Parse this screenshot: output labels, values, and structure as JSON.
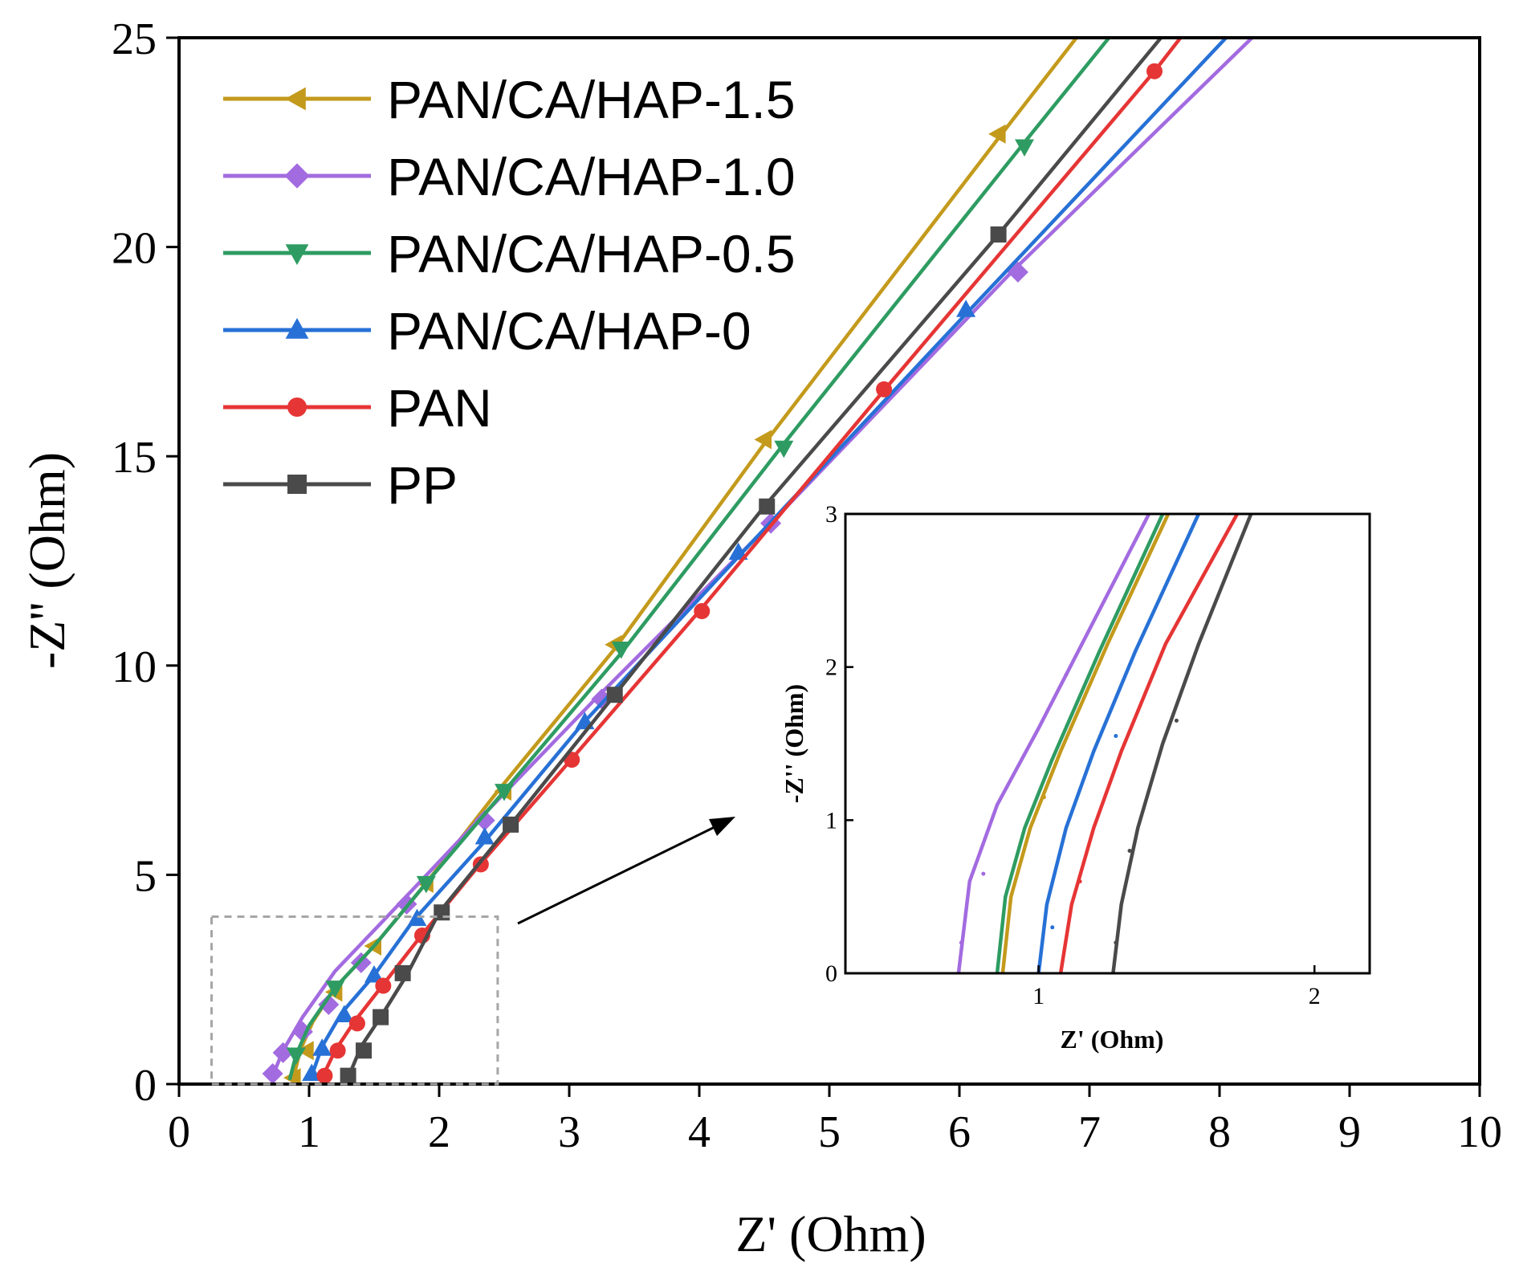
{
  "chart_data": {
    "type": "line",
    "title": "",
    "xlabel": "Z' (Ohm)",
    "ylabel": "-Z'' (Ohm)",
    "xlim": [
      0,
      10
    ],
    "ylim": [
      0,
      25
    ],
    "xticks": [
      "0",
      "1",
      "2",
      "3",
      "4",
      "5",
      "6",
      "7",
      "8",
      "9",
      "10"
    ],
    "yticks": [
      "0",
      "5",
      "10",
      "15",
      "20",
      "25"
    ],
    "legend_position": "top-left",
    "series": [
      {
        "name": "PAN/CA/HAP-1.5",
        "color": "#c49a1c",
        "marker": "triangle-left",
        "points": [
          [
            0.88,
            0.15
          ],
          [
            0.93,
            0.8
          ],
          [
            1.03,
            1.5
          ],
          [
            1.2,
            2.3
          ],
          [
            1.5,
            3.3
          ],
          [
            1.9,
            4.8
          ],
          [
            2.45,
            7.0
          ],
          [
            3.35,
            10.4
          ],
          [
            4.5,
            15.3
          ],
          [
            6.3,
            22.6
          ],
          [
            6.9,
            25.0
          ]
        ],
        "markers": [
          [
            0.88,
            0.15
          ],
          [
            0.98,
            0.8
          ],
          [
            1.2,
            2.2
          ],
          [
            1.5,
            3.3
          ],
          [
            1.9,
            4.8
          ],
          [
            2.5,
            7.0
          ],
          [
            3.35,
            10.5
          ],
          [
            4.5,
            15.4
          ],
          [
            6.3,
            22.7
          ]
        ]
      },
      {
        "name": "PAN/CA/HAP-1.0",
        "color": "#a36be0",
        "marker": "diamond",
        "points": [
          [
            0.72,
            0.2
          ],
          [
            0.8,
            0.8
          ],
          [
            0.95,
            1.6
          ],
          [
            1.2,
            2.7
          ],
          [
            1.6,
            4.0
          ],
          [
            2.3,
            6.3
          ],
          [
            3.2,
            9.2
          ],
          [
            4.55,
            13.4
          ],
          [
            6.4,
            19.4
          ],
          [
            8.25,
            25.0
          ]
        ],
        "markers": [
          [
            0.72,
            0.25
          ],
          [
            0.8,
            0.75
          ],
          [
            0.95,
            1.25
          ],
          [
            1.15,
            1.9
          ],
          [
            1.4,
            2.9
          ],
          [
            1.75,
            4.3
          ],
          [
            2.35,
            6.3
          ],
          [
            3.25,
            9.2
          ],
          [
            4.55,
            13.4
          ],
          [
            6.45,
            19.4
          ]
        ]
      },
      {
        "name": "PAN/CA/HAP-0.5",
        "color": "#2e9c62",
        "marker": "triangle-down",
        "points": [
          [
            0.85,
            0.1
          ],
          [
            0.9,
            0.7
          ],
          [
            1.0,
            1.4
          ],
          [
            1.2,
            2.3
          ],
          [
            1.5,
            3.3
          ],
          [
            1.9,
            4.8
          ],
          [
            2.5,
            7.0
          ],
          [
            3.4,
            10.3
          ],
          [
            4.65,
            15.3
          ],
          [
            6.5,
            22.5
          ],
          [
            7.15,
            25.0
          ]
        ],
        "markers": [
          [
            0.9,
            0.7
          ],
          [
            1.2,
            2.3
          ],
          [
            1.9,
            4.8
          ],
          [
            2.5,
            7.0
          ],
          [
            3.4,
            10.4
          ],
          [
            4.65,
            15.2
          ],
          [
            6.5,
            22.4
          ]
        ]
      },
      {
        "name": "PAN/CA/HAP-0",
        "color": "#2771d6",
        "marker": "triangle-up",
        "points": [
          [
            1.02,
            0.2
          ],
          [
            1.1,
            0.9
          ],
          [
            1.25,
            1.7
          ],
          [
            1.5,
            2.6
          ],
          [
            1.8,
            3.9
          ],
          [
            2.35,
            5.8
          ],
          [
            3.1,
            8.6
          ],
          [
            4.3,
            12.6
          ],
          [
            6.05,
            18.4
          ],
          [
            8.05,
            25.0
          ]
        ],
        "markers": [
          [
            1.02,
            0.25
          ],
          [
            1.1,
            0.85
          ],
          [
            1.27,
            1.65
          ],
          [
            1.5,
            2.6
          ],
          [
            1.83,
            3.95
          ],
          [
            2.35,
            5.9
          ],
          [
            3.12,
            8.65
          ],
          [
            4.3,
            12.7
          ],
          [
            6.05,
            18.5
          ]
        ]
      },
      {
        "name": "PAN",
        "color": "#e63535",
        "marker": "circle",
        "points": [
          [
            1.1,
            0.15
          ],
          [
            1.2,
            0.8
          ],
          [
            1.35,
            1.5
          ],
          [
            1.55,
            2.3
          ],
          [
            1.85,
            3.5
          ],
          [
            2.3,
            5.2
          ],
          [
            3.0,
            7.7
          ],
          [
            4.0,
            11.3
          ],
          [
            5.4,
            16.5
          ],
          [
            7.5,
            24.2
          ],
          [
            7.7,
            25.0
          ]
        ],
        "markers": [
          [
            1.12,
            0.2
          ],
          [
            1.22,
            0.8
          ],
          [
            1.37,
            1.45
          ],
          [
            1.57,
            2.35
          ],
          [
            1.87,
            3.55
          ],
          [
            2.32,
            5.25
          ],
          [
            3.02,
            7.75
          ],
          [
            4.02,
            11.3
          ],
          [
            5.42,
            16.6
          ],
          [
            7.5,
            24.2
          ]
        ]
      },
      {
        "name": "PP",
        "color": "#4a4a4a",
        "marker": "square",
        "points": [
          [
            1.3,
            0.15
          ],
          [
            1.4,
            0.9
          ],
          [
            1.55,
            1.6
          ],
          [
            1.75,
            2.6
          ],
          [
            2.0,
            4.1
          ],
          [
            2.55,
            6.2
          ],
          [
            3.35,
            9.3
          ],
          [
            4.5,
            13.8
          ],
          [
            6.3,
            20.3
          ],
          [
            7.55,
            25.0
          ]
        ],
        "markers": [
          [
            1.3,
            0.2
          ],
          [
            1.42,
            0.8
          ],
          [
            1.55,
            1.6
          ],
          [
            1.72,
            2.65
          ],
          [
            2.02,
            4.1
          ],
          [
            2.55,
            6.2
          ],
          [
            3.35,
            9.3
          ],
          [
            4.52,
            13.8
          ],
          [
            6.3,
            20.3
          ]
        ]
      }
    ],
    "zoom_region": {
      "xlim": [
        0.25,
        2.45
      ],
      "ylim": [
        0,
        4
      ]
    },
    "inset": {
      "xlabel": "Z' (Ohm)",
      "ylabel": "-Z'' (Ohm)",
      "xlim": [
        0.3,
        2.2
      ],
      "ylim": [
        0,
        3
      ],
      "xticks": [
        "1",
        "2"
      ],
      "yticks": [
        "0",
        "1",
        "2",
        "3"
      ],
      "series": [
        {
          "name": "PAN/CA/HAP-1.0",
          "color": "#a36be0",
          "points": [
            [
              0.71,
              0.0
            ],
            [
              0.75,
              0.6
            ],
            [
              0.85,
              1.1
            ],
            [
              1.0,
              1.6
            ],
            [
              1.2,
              2.3
            ],
            [
              1.4,
              3.0
            ]
          ],
          "markers": [
            [
              0.72,
              0.2
            ],
            [
              0.8,
              0.65
            ],
            [
              1.1,
              1.95
            ]
          ]
        },
        {
          "name": "PAN/CA/HAP-0.5",
          "color": "#2e9c62",
          "points": [
            [
              0.85,
              0.0
            ],
            [
              0.88,
              0.5
            ],
            [
              0.95,
              0.95
            ],
            [
              1.05,
              1.4
            ],
            [
              1.22,
              2.1
            ],
            [
              1.45,
              3.0
            ]
          ],
          "markers": []
        },
        {
          "name": "PAN/CA/HAP-1.5",
          "color": "#c49a1c",
          "points": [
            [
              0.87,
              0.0
            ],
            [
              0.9,
              0.5
            ],
            [
              0.97,
              0.95
            ],
            [
              1.08,
              1.45
            ],
            [
              1.25,
              2.15
            ],
            [
              1.47,
              3.0
            ]
          ],
          "markers": [
            [
              1.02,
              1.15
            ]
          ]
        },
        {
          "name": "PAN/CA/HAP-0",
          "color": "#2771d6",
          "points": [
            [
              1.0,
              0.0
            ],
            [
              1.03,
              0.45
            ],
            [
              1.1,
              0.95
            ],
            [
              1.2,
              1.45
            ],
            [
              1.35,
              2.1
            ],
            [
              1.58,
              3.0
            ]
          ],
          "markers": [
            [
              1.05,
              0.3
            ],
            [
              1.28,
              1.55
            ]
          ]
        },
        {
          "name": "PAN",
          "color": "#e63535",
          "points": [
            [
              1.08,
              0.0
            ],
            [
              1.12,
              0.45
            ],
            [
              1.2,
              0.95
            ],
            [
              1.3,
              1.45
            ],
            [
              1.46,
              2.15
            ],
            [
              1.72,
              3.0
            ]
          ],
          "markers": [
            [
              1.15,
              0.6
            ]
          ]
        },
        {
          "name": "PP",
          "color": "#4a4a4a",
          "points": [
            [
              1.27,
              0.0
            ],
            [
              1.3,
              0.45
            ],
            [
              1.36,
              0.95
            ],
            [
              1.45,
              1.5
            ],
            [
              1.58,
              2.15
            ],
            [
              1.77,
              3.0
            ]
          ],
          "markers": [
            [
              1.28,
              0.2
            ],
            [
              1.33,
              0.8
            ],
            [
              1.5,
              1.65
            ]
          ]
        }
      ]
    }
  }
}
